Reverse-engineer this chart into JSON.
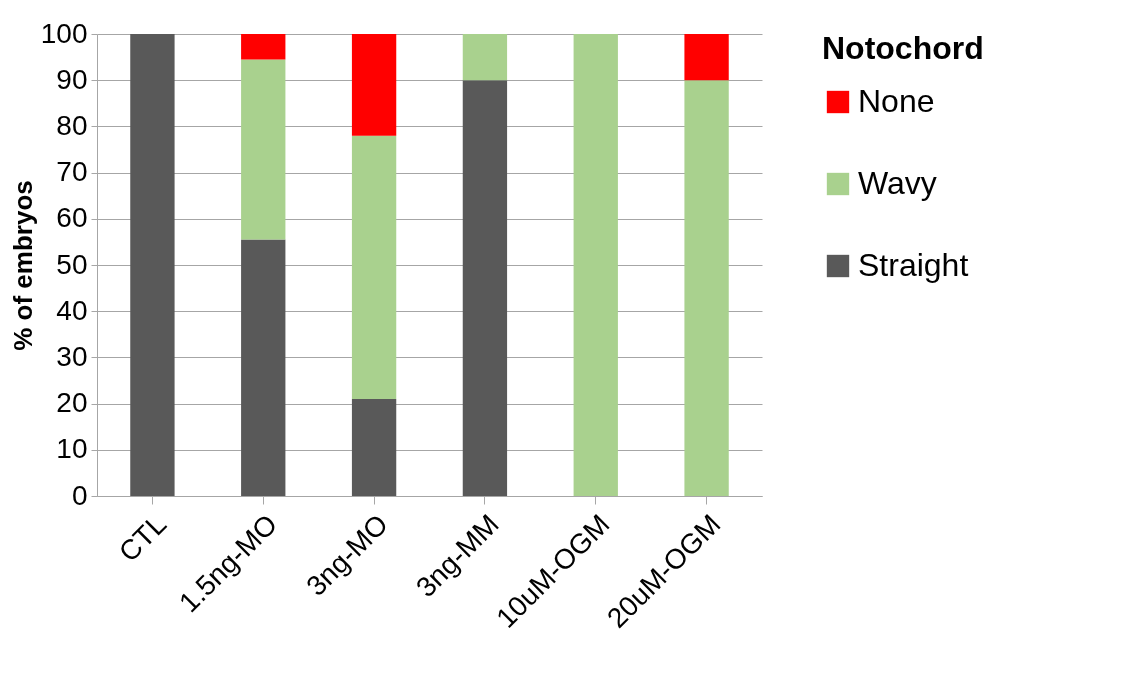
{
  "chart_data": {
    "type": "bar",
    "stacked": true,
    "ylabel": "% of embryos",
    "legend_title": "Notochord",
    "legend": "right",
    "grid": "y",
    "categories": [
      "CTL",
      "1.5ng-MO",
      "3ng-MO",
      "3ng-MM",
      "10uM-OGM",
      "20uM-OGM"
    ],
    "ylim": [
      0,
      100
    ],
    "yticks": [
      0,
      10,
      20,
      30,
      40,
      50,
      60,
      70,
      80,
      90,
      100
    ],
    "series": [
      {
        "name": "Straight",
        "color": "#595959",
        "values": [
          100,
          55.5,
          21,
          90,
          null,
          null
        ]
      },
      {
        "name": "Wavy",
        "color": "#a9d18e",
        "values": [
          null,
          39,
          57,
          10,
          100,
          90
        ]
      },
      {
        "name": "None",
        "color": "#ff0000",
        "values": [
          null,
          5.5,
          22,
          null,
          null,
          10
        ]
      }
    ]
  }
}
